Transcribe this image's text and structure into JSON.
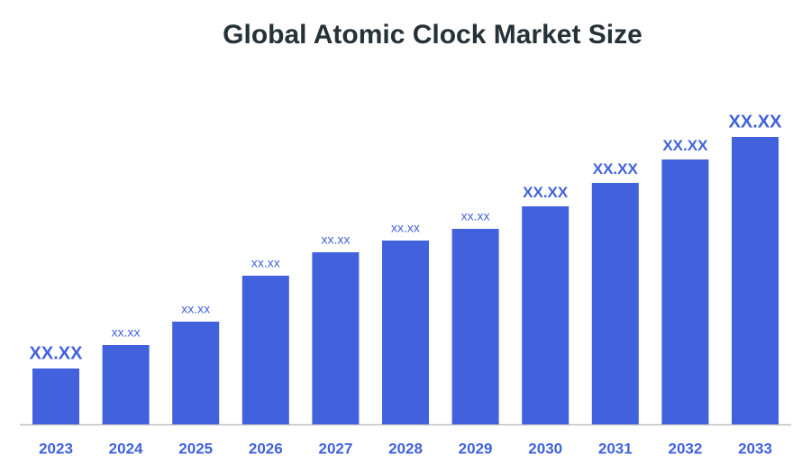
{
  "chart_data": {
    "type": "bar",
    "title": "Global Atomic Clock Market Size",
    "categories": [
      "2023",
      "2024",
      "2025",
      "2026",
      "2027",
      "2028",
      "2029",
      "2030",
      "2031",
      "2032",
      "2033"
    ],
    "values": [
      62,
      88,
      114,
      165,
      191,
      204,
      217,
      242,
      268,
      294,
      319
    ],
    "value_labels": [
      "XX.XX",
      "xx.xx",
      "xx.xx",
      "xx.xx",
      "xx.xx",
      "xx.xx",
      "xx.xx",
      "XX.XX",
      "XX.XX",
      "XX.XX",
      "XX.XX"
    ],
    "color": "#4161dd",
    "ylim": [
      0,
      330
    ]
  }
}
